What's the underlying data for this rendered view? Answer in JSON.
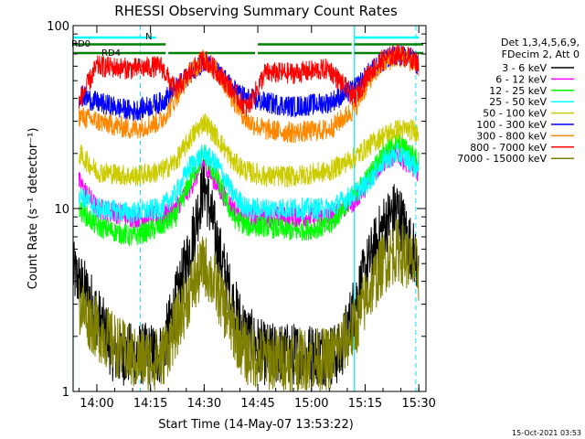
{
  "chart_data": {
    "type": "line",
    "title": "RHESSI Observing Summary Count Rates",
    "xlabel": "Start Time (14-May-07 13:53:22)",
    "ylabel": "Count Rate (s⁻¹ detector⁻¹)",
    "yscale": "log",
    "ylim": [
      1,
      100
    ],
    "xlim": [
      "13:53:22",
      "15:32:00"
    ],
    "x_ticks": [
      "14:00",
      "14:15",
      "14:30",
      "14:45",
      "15:00",
      "15:15",
      "15:30"
    ],
    "y_ticks": [
      "1",
      "10",
      "100"
    ],
    "legend_header": [
      "Det 1,3,4,5,6,9,",
      "FDecim 2, Att 0"
    ],
    "legend_position": "right",
    "timestamp": "15-Oct-2021 03:53",
    "annotations": {
      "bars": [
        "N",
        "RD0",
        "RD4"
      ],
      "night_intervals": [
        [
          "13:53:22",
          "14:16:30"
        ],
        [
          "15:12:00",
          "15:30:00"
        ]
      ],
      "saa_lines": [
        "13:53:22",
        "14:12:10",
        "15:12:00",
        "15:29:10"
      ],
      "rd0_intervals": [
        [
          "13:53:22",
          "14:20:00"
        ],
        [
          "14:45:00",
          "15:12:00"
        ],
        [
          "15:12:00",
          "15:32:00"
        ]
      ],
      "rd4_intervals": [
        [
          "13:53:22",
          "14:20:00"
        ],
        [
          "14:20:00",
          "14:45:00"
        ],
        [
          "14:45:00",
          "15:12:00"
        ],
        [
          "15:12:00",
          "15:32:00"
        ]
      ]
    },
    "series": [
      {
        "name": "3 - 6 keV",
        "color": "#000000",
        "times": [
          "13:53:22",
          "13:58",
          "14:05",
          "14:12",
          "14:18",
          "14:22",
          "14:26",
          "14:30",
          "14:34",
          "14:38",
          "14:42",
          "14:47",
          "14:55",
          "15:03",
          "15:08",
          "15:12",
          "15:16",
          "15:20",
          "15:24",
          "15:28",
          "15:30"
        ],
        "values": [
          4.5,
          3.2,
          1.6,
          1.6,
          1.6,
          3.0,
          6.0,
          14.0,
          6.0,
          3.0,
          2.0,
          1.6,
          1.6,
          1.6,
          1.6,
          3.0,
          5.0,
          8.0,
          10.0,
          6.0,
          5.0
        ]
      },
      {
        "name": "6 - 12 keV",
        "color": "#ff00ff",
        "times": [
          "13:55",
          "14:00",
          "14:10",
          "14:18",
          "14:22",
          "14:26",
          "14:30",
          "14:34",
          "14:38",
          "14:42",
          "14:47",
          "14:55",
          "15:05",
          "15:12",
          "15:16",
          "15:20",
          "15:24",
          "15:28",
          "15:30"
        ],
        "values": [
          14,
          10,
          9,
          9,
          10,
          13,
          18,
          13,
          10,
          9,
          9,
          9,
          9,
          11,
          14,
          18,
          20,
          17,
          16
        ]
      },
      {
        "name": "12 - 25 keV",
        "color": "#00ff00",
        "times": [
          "13:55",
          "14:00",
          "14:10",
          "14:18",
          "14:22",
          "14:26",
          "14:30",
          "14:34",
          "14:38",
          "14:42",
          "14:47",
          "14:55",
          "15:05",
          "15:12",
          "15:16",
          "15:20",
          "15:24",
          "15:28",
          "15:30"
        ],
        "values": [
          10,
          8,
          7,
          8,
          9,
          14,
          20,
          14,
          9,
          8,
          8,
          7.5,
          8,
          12,
          15,
          20,
          23,
          20,
          18
        ]
      },
      {
        "name": "25 - 50 keV",
        "color": "#00ffff",
        "times": [
          "13:55",
          "14:00",
          "14:10",
          "14:18",
          "14:22",
          "14:26",
          "14:30",
          "14:34",
          "14:38",
          "14:42",
          "14:47",
          "14:55",
          "15:05",
          "15:12",
          "15:16",
          "15:20",
          "15:24",
          "15:28",
          "15:30"
        ],
        "values": [
          12,
          10,
          9.5,
          10,
          12,
          17,
          20,
          17,
          12,
          10,
          10,
          10,
          10,
          12,
          14,
          18,
          20,
          18,
          16
        ]
      },
      {
        "name": "50 - 100 keV",
        "color": "#cccc00",
        "times": [
          "13:55",
          "14:00",
          "14:10",
          "14:18",
          "14:22",
          "14:26",
          "14:30",
          "14:34",
          "14:38",
          "14:42",
          "14:47",
          "14:55",
          "15:05",
          "15:12",
          "15:16",
          "15:20",
          "15:24",
          "15:28",
          "15:30"
        ],
        "values": [
          20,
          16,
          15,
          16,
          18,
          24,
          30,
          24,
          18,
          16,
          15,
          15,
          16,
          19,
          22,
          25,
          27,
          27,
          26
        ]
      },
      {
        "name": "100 - 300 keV",
        "color": "#0000ff",
        "times": [
          "13:55",
          "14:00",
          "14:10",
          "14:18",
          "14:22",
          "14:26",
          "14:30",
          "14:34",
          "14:38",
          "14:42",
          "14:47",
          "14:55",
          "15:05",
          "15:12",
          "15:16",
          "15:20",
          "15:24",
          "15:28",
          "15:30"
        ],
        "values": [
          42,
          38,
          34,
          38,
          45,
          55,
          64,
          55,
          45,
          40,
          38,
          36,
          38,
          45,
          55,
          64,
          70,
          66,
          60
        ]
      },
      {
        "name": "300 - 800 keV",
        "color": "#ff8800",
        "times": [
          "13:55",
          "14:00",
          "14:10",
          "14:18",
          "14:22",
          "14:26",
          "14:30",
          "14:34",
          "14:38",
          "14:42",
          "14:47",
          "14:55",
          "15:05",
          "15:12",
          "15:16",
          "15:20",
          "15:24",
          "15:28",
          "15:30"
        ],
        "values": [
          32,
          30,
          27,
          30,
          40,
          55,
          66,
          55,
          40,
          30,
          27,
          26,
          27,
          35,
          50,
          62,
          68,
          64,
          60
        ]
      },
      {
        "name": "800 - 7000 keV",
        "color": "#ff0000",
        "times": [
          "13:55",
          "14:00",
          "14:10",
          "14:18",
          "14:22",
          "14:26",
          "14:30",
          "14:34",
          "14:38",
          "14:42",
          "14:47",
          "14:55",
          "15:05",
          "15:12",
          "15:16",
          "15:20",
          "15:24",
          "15:28",
          "15:30"
        ],
        "values": [
          38,
          60,
          58,
          60,
          44,
          55,
          66,
          55,
          44,
          35,
          55,
          55,
          58,
          40,
          55,
          65,
          70,
          66,
          62
        ]
      },
      {
        "name": "7000 - 15000 keV",
        "color": "#808000",
        "times": [
          "13:55",
          "14:00",
          "14:10",
          "14:18",
          "14:22",
          "14:26",
          "14:30",
          "14:34",
          "14:38",
          "14:42",
          "14:47",
          "14:55",
          "15:05",
          "15:12",
          "15:16",
          "15:20",
          "15:24",
          "15:28",
          "15:30"
        ],
        "values": [
          3.0,
          2.2,
          1.5,
          1.5,
          2.2,
          3.5,
          5.0,
          3.5,
          2.2,
          1.6,
          1.5,
          1.5,
          1.5,
          2.2,
          3.5,
          5.0,
          6.0,
          5.0,
          4.5
        ]
      }
    ]
  }
}
